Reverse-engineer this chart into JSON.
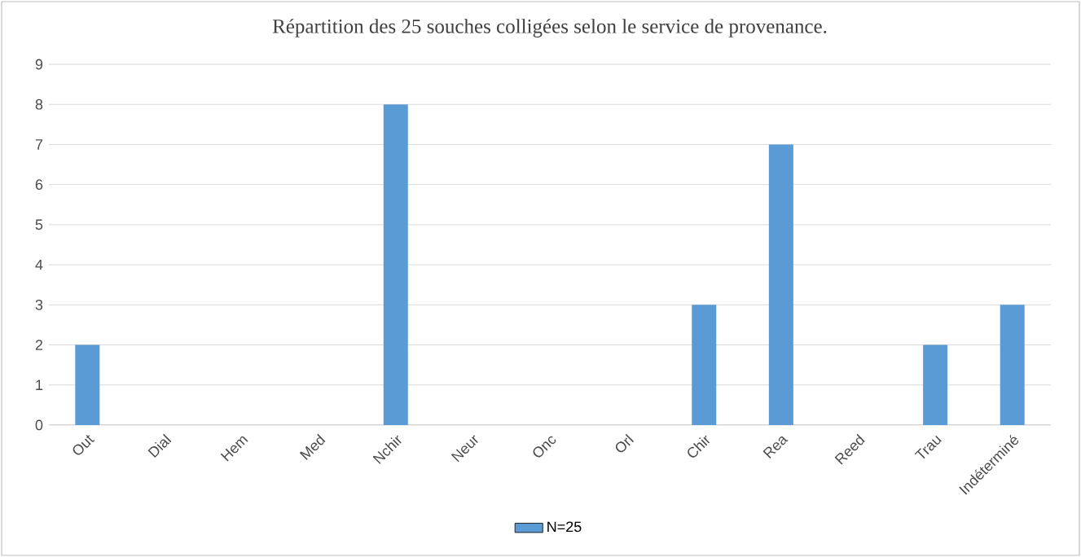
{
  "chart_data": {
    "type": "bar",
    "title": "Répartition des 25 souches colligées selon le service de provenance.",
    "categories": [
      "Out",
      "Dial",
      "Hem",
      "Med",
      "Nchir",
      "Neur",
      "Onc",
      "Orl",
      "Chir",
      "Rea",
      "Reed",
      "Trau",
      "Indéterminé"
    ],
    "series": [
      {
        "name": "N=25",
        "color": "#5b9bd5",
        "values": [
          2,
          0,
          0,
          0,
          8,
          0,
          0,
          0,
          3,
          7,
          0,
          2,
          3
        ]
      }
    ],
    "ylim": [
      0,
      9
    ],
    "yticks": [
      0,
      1,
      2,
      3,
      4,
      5,
      6,
      7,
      8,
      9
    ],
    "grid": "y",
    "legend": "bottom"
  }
}
